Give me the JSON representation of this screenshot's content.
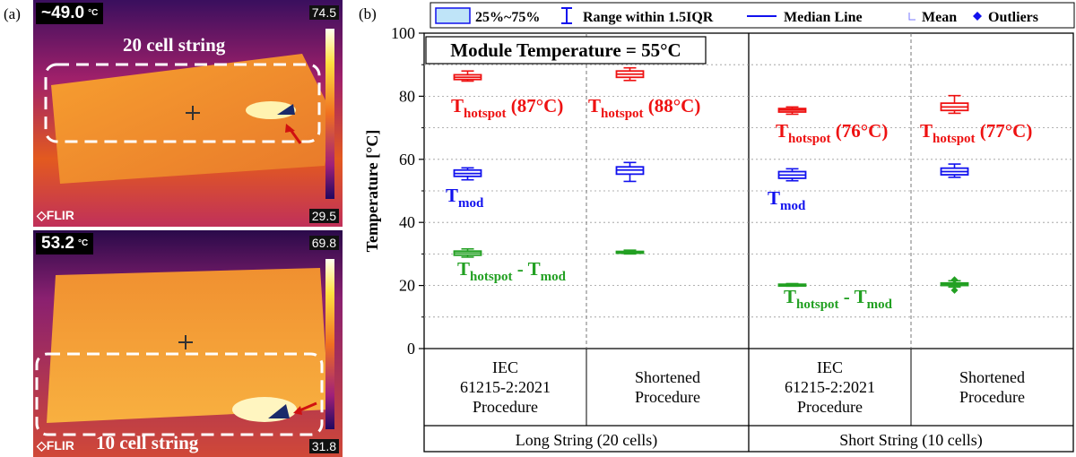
{
  "panels": {
    "a": "(a)",
    "b": "(b)"
  },
  "thermal_images": [
    {
      "readout": "~49.0",
      "unit": "°C",
      "max": "74.5",
      "min": "29.5",
      "brand": "FLIR",
      "caption": "20 cell string"
    },
    {
      "readout": "53.2",
      "unit": "°C",
      "max": "69.8",
      "min": "31.8",
      "brand": "FLIR",
      "caption": "10 cell string"
    }
  ],
  "chart_data": {
    "type": "box",
    "title": "Module Temperature = 55°C",
    "ylabel": "Temperature [°C]",
    "ylim": [
      0,
      100
    ],
    "yticks": [
      0,
      20,
      40,
      60,
      80,
      100
    ],
    "grid": true,
    "categories": [
      "IEC 61215-2:2021 Procedure",
      "Shortened Procedure",
      "IEC 61215-2:2021 Procedure",
      "Shortened Procedure"
    ],
    "category_lines": [
      [
        "IEC",
        "61215-2:2021",
        "Procedure"
      ],
      [
        "Shortened",
        "Procedure"
      ],
      [
        "IEC",
        "61215-2:2021",
        "Procedure"
      ],
      [
        "Shortened",
        "Procedure"
      ]
    ],
    "groups": [
      "Long String (20 cells)",
      "Short String (10 cells)"
    ],
    "legend": {
      "position": "top",
      "items": [
        "25%~75%",
        "Range within 1.5IQR",
        "Median Line",
        "Mean",
        "Outliers"
      ]
    },
    "series": [
      {
        "name": "Thotspot",
        "color": "#ee1111",
        "boxes": [
          {
            "whisker_low": 84.8,
            "q1": 85.3,
            "median": 86.0,
            "q3": 86.8,
            "whisker_high": 88.0
          },
          {
            "whisker_low": 85.0,
            "q1": 86.0,
            "median": 87.0,
            "q3": 88.0,
            "whisker_high": 89.0
          },
          {
            "whisker_low": 74.3,
            "q1": 75.0,
            "median": 75.6,
            "q3": 76.1,
            "whisker_high": 76.6
          },
          {
            "whisker_low": 74.6,
            "q1": 75.5,
            "median": 76.6,
            "q3": 77.8,
            "whisker_high": 80.2
          }
        ]
      },
      {
        "name": "Tmod",
        "color": "#1111ee",
        "boxes": [
          {
            "whisker_low": 53.5,
            "q1": 54.6,
            "median": 55.5,
            "q3": 56.6,
            "whisker_high": 57.3
          },
          {
            "whisker_low": 53.0,
            "q1": 55.3,
            "median": 56.6,
            "q3": 57.6,
            "whisker_high": 59.0
          },
          {
            "whisker_low": 53.2,
            "q1": 54.0,
            "median": 55.0,
            "q3": 56.1,
            "whisker_high": 57.0
          },
          {
            "whisker_low": 54.3,
            "q1": 55.1,
            "median": 56.1,
            "q3": 57.2,
            "whisker_high": 58.5
          }
        ]
      },
      {
        "name": "Thotspot - Tmod",
        "color": "#22a022",
        "boxes": [
          {
            "whisker_low": 29.0,
            "q1": 29.6,
            "median": 30.3,
            "q3": 30.9,
            "whisker_high": 31.6
          },
          {
            "whisker_low": 30.0,
            "q1": 30.3,
            "median": 30.5,
            "q3": 30.8,
            "whisker_high": 31.2
          },
          {
            "whisker_low": 19.8,
            "q1": 20.0,
            "median": 20.2,
            "q3": 20.4,
            "whisker_high": 20.6
          },
          {
            "whisker_low": 19.5,
            "q1": 20.0,
            "median": 20.4,
            "q3": 20.8,
            "whisker_high": 21.5
          }
        ],
        "outliers": [
          [
            3,
            18.5
          ],
          [
            3,
            21.8
          ]
        ]
      }
    ],
    "annotations": [
      {
        "series": 0,
        "category": 0,
        "main": "T",
        "sub": "hotspot",
        "suffix": " (87°C)"
      },
      {
        "series": 0,
        "category": 1,
        "main": "T",
        "sub": "hotspot",
        "suffix": " (88°C)"
      },
      {
        "series": 0,
        "category": 2,
        "main": "T",
        "sub": "hotspot",
        "suffix": " (76°C)"
      },
      {
        "series": 0,
        "category": 3,
        "main": "T",
        "sub": "hotspot",
        "suffix": " (77°C)"
      },
      {
        "series": 1,
        "category": 0,
        "main": "T",
        "sub": "mod",
        "suffix": ""
      },
      {
        "series": 1,
        "category": 2,
        "main": "T",
        "sub": "mod",
        "suffix": ""
      },
      {
        "series": 2,
        "category": 0,
        "main": "T",
        "sub": "hotspot",
        "suffix": " - T",
        "sub2": "mod"
      },
      {
        "series": 2,
        "category": 2,
        "main": "T",
        "sub": "hotspot",
        "suffix": " - T",
        "sub2": "mod"
      }
    ]
  }
}
